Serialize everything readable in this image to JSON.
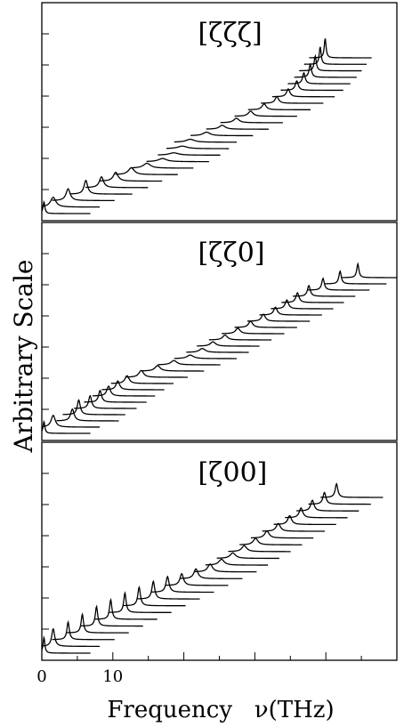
{
  "chart_data": {
    "type": "line",
    "ylabel": "Arbitrary Scale",
    "xlabel": "Frequency   ν(THz)",
    "xlim": [
      0,
      50
    ],
    "x_ticks": [
      0,
      10
    ],
    "y_ticks_visible": true,
    "panels": [
      {
        "label": "[ζζζ]",
        "spectra": [
          {
            "peak_x": 0.3,
            "width": 0.15,
            "height": 0.06
          },
          {
            "peak_x": 1.6,
            "width": 0.45,
            "height": 0.05
          },
          {
            "peak_x": 3.7,
            "width": 0.35,
            "height": 0.06
          },
          {
            "peak_x": 6.2,
            "width": 0.3,
            "height": 0.07
          },
          {
            "peak_x": 8.4,
            "width": 0.35,
            "height": 0.055
          },
          {
            "peak_x": 10.4,
            "width": 0.4,
            "height": 0.045
          },
          {
            "peak_x": 12.6,
            "width": 0.5,
            "height": 0.035
          },
          {
            "peak_x": 14.8,
            "width": 0.6,
            "height": 0.025
          },
          {
            "peak_x": 17.0,
            "width": 0.7,
            "height": 0.016
          },
          {
            "peak_x": 18.6,
            "width": 0.8,
            "height": 0.012
          },
          {
            "peak_x": 19.8,
            "width": 0.8,
            "height": 0.013
          },
          {
            "peak_x": 20.9,
            "width": 0.7,
            "height": 0.015
          },
          {
            "peak_x": 23.2,
            "width": 0.6,
            "height": 0.018
          },
          {
            "peak_x": 25.4,
            "width": 0.5,
            "height": 0.02
          },
          {
            "peak_x": 27.4,
            "width": 0.45,
            "height": 0.023
          },
          {
            "peak_x": 29.4,
            "width": 0.4,
            "height": 0.026
          },
          {
            "peak_x": 31.3,
            "width": 0.35,
            "height": 0.03
          },
          {
            "peak_x": 33.1,
            "width": 0.3,
            "height": 0.034
          },
          {
            "peak_x": 34.7,
            "width": 0.28,
            "height": 0.04
          },
          {
            "peak_x": 35.9,
            "width": 0.25,
            "height": 0.048
          },
          {
            "peak_x": 36.9,
            "width": 0.22,
            "height": 0.056
          },
          {
            "peak_x": 37.8,
            "width": 0.2,
            "height": 0.066
          },
          {
            "peak_x": 38.5,
            "width": 0.18,
            "height": 0.076
          },
          {
            "peak_x": 39.2,
            "width": 0.16,
            "height": 0.09
          },
          {
            "peak_x": 39.9,
            "width": 0.15,
            "height": 0.1
          }
        ]
      },
      {
        "label": "[ζζ0]",
        "spectra": [
          {
            "peak_x": 0.3,
            "width": 0.15,
            "height": 0.06
          },
          {
            "peak_x": 1.6,
            "width": 0.35,
            "height": 0.06
          },
          {
            "peak_x": 4.3,
            "width": 0.3,
            "height": 0.06
          },
          {
            "peak_x": 5.2,
            "width": 0.25,
            "height": 0.075
          },
          {
            "peak_x": 6.8,
            "width": 0.25,
            "height": 0.065
          },
          {
            "peak_x": 8.2,
            "width": 0.25,
            "height": 0.06
          },
          {
            "peak_x": 9.4,
            "width": 0.3,
            "height": 0.05
          },
          {
            "peak_x": 10.7,
            "width": 0.3,
            "height": 0.045
          },
          {
            "peak_x": 12.0,
            "width": 0.35,
            "height": 0.04
          },
          {
            "peak_x": 14.0,
            "width": 0.4,
            "height": 0.035
          },
          {
            "peak_x": 16.3,
            "width": 0.45,
            "height": 0.028
          },
          {
            "peak_x": 18.6,
            "width": 0.5,
            "height": 0.022
          },
          {
            "peak_x": 20.9,
            "width": 0.55,
            "height": 0.018
          },
          {
            "peak_x": 22.6,
            "width": 0.5,
            "height": 0.02
          },
          {
            "peak_x": 24.1,
            "width": 0.45,
            "height": 0.022
          },
          {
            "peak_x": 25.8,
            "width": 0.4,
            "height": 0.025
          },
          {
            "peak_x": 27.6,
            "width": 0.38,
            "height": 0.028
          },
          {
            "peak_x": 29.4,
            "width": 0.35,
            "height": 0.032
          },
          {
            "peak_x": 31.2,
            "width": 0.32,
            "height": 0.036
          },
          {
            "peak_x": 32.9,
            "width": 0.3,
            "height": 0.04
          },
          {
            "peak_x": 34.5,
            "width": 0.28,
            "height": 0.045
          },
          {
            "peak_x": 36.0,
            "width": 0.26,
            "height": 0.05
          },
          {
            "peak_x": 37.6,
            "width": 0.24,
            "height": 0.055
          },
          {
            "peak_x": 39.6,
            "width": 0.22,
            "height": 0.06
          },
          {
            "peak_x": 42.0,
            "width": 0.2,
            "height": 0.065
          },
          {
            "peak_x": 44.5,
            "width": 0.18,
            "height": 0.07
          }
        ]
      },
      {
        "label": "[ζ00]",
        "spectra": [
          {
            "peak_x": 0.3,
            "width": 0.15,
            "height": 0.08
          },
          {
            "peak_x": 1.6,
            "width": 0.25,
            "height": 0.09
          },
          {
            "peak_x": 3.7,
            "width": 0.2,
            "height": 0.09
          },
          {
            "peak_x": 5.7,
            "width": 0.2,
            "height": 0.095
          },
          {
            "peak_x": 7.7,
            "width": 0.2,
            "height": 0.1
          },
          {
            "peak_x": 9.7,
            "width": 0.2,
            "height": 0.1
          },
          {
            "peak_x": 11.7,
            "width": 0.2,
            "height": 0.1
          },
          {
            "peak_x": 13.7,
            "width": 0.22,
            "height": 0.095
          },
          {
            "peak_x": 15.7,
            "width": 0.24,
            "height": 0.09
          },
          {
            "peak_x": 17.7,
            "width": 0.26,
            "height": 0.08
          },
          {
            "peak_x": 19.7,
            "width": 0.3,
            "height": 0.06
          },
          {
            "peak_x": 21.7,
            "width": 0.35,
            "height": 0.05
          },
          {
            "peak_x": 23.7,
            "width": 0.4,
            "height": 0.04
          },
          {
            "peak_x": 25.3,
            "width": 0.45,
            "height": 0.03
          },
          {
            "peak_x": 26.9,
            "width": 0.45,
            "height": 0.028
          },
          {
            "peak_x": 28.5,
            "width": 0.42,
            "height": 0.03
          },
          {
            "peak_x": 30.1,
            "width": 0.4,
            "height": 0.033
          },
          {
            "peak_x": 31.7,
            "width": 0.38,
            "height": 0.036
          },
          {
            "peak_x": 33.3,
            "width": 0.35,
            "height": 0.04
          },
          {
            "peak_x": 34.9,
            "width": 0.32,
            "height": 0.045
          },
          {
            "peak_x": 36.5,
            "width": 0.3,
            "height": 0.05
          },
          {
            "peak_x": 38.1,
            "width": 0.28,
            "height": 0.055
          },
          {
            "peak_x": 39.8,
            "width": 0.25,
            "height": 0.06
          },
          {
            "peak_x": 41.5,
            "width": 0.22,
            "height": 0.07
          }
        ]
      }
    ]
  }
}
